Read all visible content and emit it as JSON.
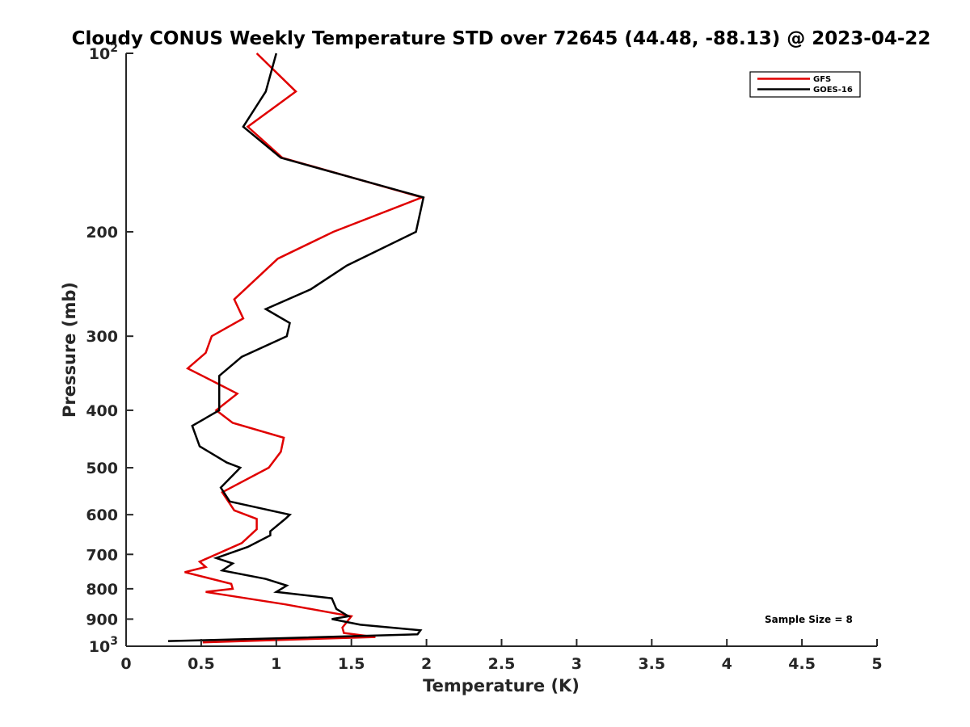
{
  "chart_data": {
    "type": "line",
    "title": "Cloudy CONUS Weekly Temperature STD over 72645 (44.48, -88.13) @ 2023-04-22",
    "xlabel": "Temperature (K)",
    "ylabel": "Pressure (mb)",
    "xlim": [
      0,
      5
    ],
    "ylim": [
      100,
      1000
    ],
    "y_scale": "log",
    "y_reversed": true,
    "grid": false,
    "x_ticks": [
      0,
      0.5,
      1,
      1.5,
      2,
      2.5,
      3,
      3.5,
      4,
      4.5,
      5
    ],
    "x_tick_labels": [
      "0",
      "0.5",
      "1",
      "1.5",
      "2",
      "2.5",
      "3",
      "3.5",
      "4",
      "4.5",
      "5"
    ],
    "y_ticks": [
      {
        "value": 100,
        "base": "10",
        "exp": "2"
      },
      {
        "value": 200,
        "label": "200"
      },
      {
        "value": 300,
        "label": "300"
      },
      {
        "value": 400,
        "label": "400"
      },
      {
        "value": 500,
        "label": "500"
      },
      {
        "value": 600,
        "label": "600"
      },
      {
        "value": 700,
        "label": "700"
      },
      {
        "value": 800,
        "label": "800"
      },
      {
        "value": 900,
        "label": "900"
      },
      {
        "value": 1000,
        "base": "10",
        "exp": "3"
      }
    ],
    "legend_position": "top-right",
    "series": [
      {
        "name": "GFS",
        "color": "#e00000",
        "points": [
          [
            0.87,
            100
          ],
          [
            1.13,
            116
          ],
          [
            0.81,
            133
          ],
          [
            1.04,
            150
          ],
          [
            1.97,
            175
          ],
          [
            1.38,
            200
          ],
          [
            1.01,
            222
          ],
          [
            0.72,
            260
          ],
          [
            0.78,
            280
          ],
          [
            0.57,
            300
          ],
          [
            0.53,
            320
          ],
          [
            0.41,
            340
          ],
          [
            0.65,
            365
          ],
          [
            0.74,
            375
          ],
          [
            0.6,
            400
          ],
          [
            0.71,
            420
          ],
          [
            1.05,
            445
          ],
          [
            1.03,
            470
          ],
          [
            0.95,
            500
          ],
          [
            0.64,
            550
          ],
          [
            0.72,
            590
          ],
          [
            0.87,
            610
          ],
          [
            0.87,
            635
          ],
          [
            0.77,
            670
          ],
          [
            0.49,
            720
          ],
          [
            0.53,
            735
          ],
          [
            0.39,
            750
          ],
          [
            0.7,
            785
          ],
          [
            0.71,
            800
          ],
          [
            0.53,
            810
          ],
          [
            1.06,
            850
          ],
          [
            1.39,
            880
          ],
          [
            1.5,
            890
          ],
          [
            1.44,
            930
          ],
          [
            1.45,
            950
          ],
          [
            1.66,
            965
          ],
          [
            0.51,
            985
          ]
        ]
      },
      {
        "name": "GOES-16",
        "color": "#000000",
        "points": [
          [
            1.0,
            100
          ],
          [
            0.93,
            116
          ],
          [
            0.78,
            133
          ],
          [
            1.03,
            150
          ],
          [
            1.98,
            175
          ],
          [
            1.93,
            200
          ],
          [
            1.47,
            228
          ],
          [
            1.23,
            250
          ],
          [
            0.93,
            270
          ],
          [
            1.09,
            285
          ],
          [
            1.07,
            300
          ],
          [
            0.77,
            325
          ],
          [
            0.62,
            350
          ],
          [
            0.62,
            380
          ],
          [
            0.62,
            400
          ],
          [
            0.44,
            425
          ],
          [
            0.49,
            460
          ],
          [
            0.67,
            490
          ],
          [
            0.76,
            500
          ],
          [
            0.63,
            540
          ],
          [
            0.69,
            570
          ],
          [
            1.09,
            600
          ],
          [
            1.06,
            610
          ],
          [
            0.96,
            640
          ],
          [
            0.96,
            650
          ],
          [
            0.81,
            680
          ],
          [
            0.6,
            710
          ],
          [
            0.71,
            725
          ],
          [
            0.64,
            745
          ],
          [
            0.93,
            770
          ],
          [
            1.07,
            790
          ],
          [
            1.0,
            810
          ],
          [
            1.37,
            830
          ],
          [
            1.4,
            865
          ],
          [
            1.48,
            890
          ],
          [
            1.37,
            900
          ],
          [
            1.56,
            920
          ],
          [
            1.96,
            940
          ],
          [
            1.94,
            955
          ],
          [
            1.0,
            970
          ],
          [
            0.28,
            980
          ]
        ]
      }
    ],
    "legend": [
      "GFS",
      "GOES-16"
    ],
    "annotation": "Sample Size = 8"
  }
}
